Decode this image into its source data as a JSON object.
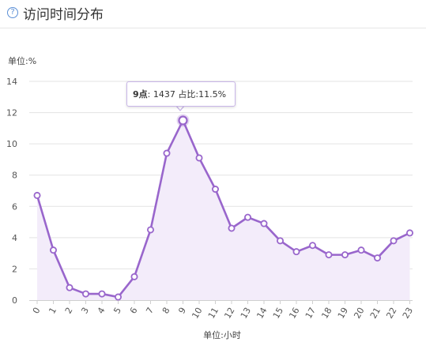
{
  "header": {
    "title": "访问时间分布",
    "help_icon": "question-circle-icon"
  },
  "chart_data": {
    "type": "area",
    "title": "",
    "ylabel": "单位:%",
    "xlabel": "单位:小时",
    "categories": [
      "0",
      "1",
      "2",
      "3",
      "4",
      "5",
      "6",
      "7",
      "8",
      "9",
      "10",
      "11",
      "12",
      "13",
      "14",
      "15",
      "16",
      "17",
      "18",
      "19",
      "20",
      "21",
      "22",
      "23"
    ],
    "series": [
      {
        "values": [
          6.7,
          3.2,
          0.8,
          0.4,
          0.4,
          0.2,
          1.5,
          4.5,
          9.4,
          11.5,
          9.1,
          7.1,
          4.6,
          5.3,
          4.9,
          3.8,
          3.1,
          3.5,
          2.9,
          2.9,
          3.2,
          2.7,
          3.8,
          4.3
        ]
      }
    ],
    "ylim": [
      0,
      14
    ],
    "yticks": [
      0,
      2,
      4,
      6,
      8,
      10,
      12,
      14
    ],
    "grid": true,
    "line_color": "#9966cc",
    "fill_color": "#f3ecfa",
    "tooltip": {
      "label": "9点",
      "count": "1437",
      "share_label": "占比",
      "share": "11.5%"
    }
  }
}
